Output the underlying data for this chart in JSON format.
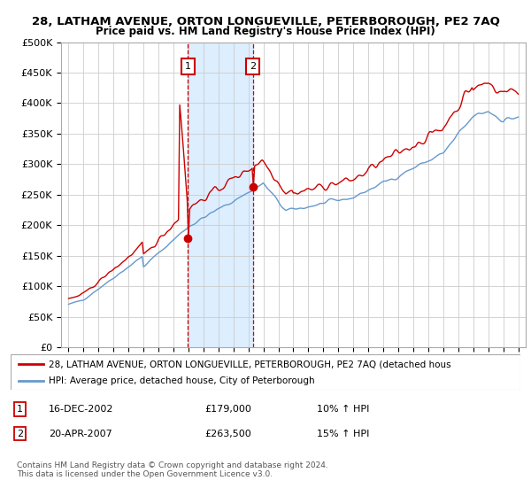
{
  "title": "28, LATHAM AVENUE, ORTON LONGUEVILLE, PETERBOROUGH, PE2 7AQ",
  "subtitle": "Price paid vs. HM Land Registry's House Price Index (HPI)",
  "legend_line1": "28, LATHAM AVENUE, ORTON LONGUEVILLE, PETERBOROUGH, PE2 7AQ (detached hous",
  "legend_line2": "HPI: Average price, detached house, City of Peterborough",
  "annotation1_label": "1",
  "annotation1_date": "16-DEC-2002",
  "annotation1_price": "£179,000",
  "annotation1_hpi": "10% ↑ HPI",
  "annotation2_label": "2",
  "annotation2_date": "20-APR-2007",
  "annotation2_price": "£263,500",
  "annotation2_hpi": "15% ↑ HPI",
  "footer": "Contains HM Land Registry data © Crown copyright and database right 2024.\nThis data is licensed under the Open Government Licence v3.0.",
  "ylim": [
    0,
    500000
  ],
  "yticks": [
    0,
    50000,
    100000,
    150000,
    200000,
    250000,
    300000,
    350000,
    400000,
    450000,
    500000
  ],
  "line_color_red": "#cc0000",
  "line_color_blue": "#6699cc",
  "shade_color": "#ddeeff",
  "annotation_box_color": "#cc0000",
  "background_color": "#ffffff",
  "grid_color": "#cccccc",
  "sale1_year": 2002.96,
  "sale1_value": 179000,
  "sale2_year": 2007.3,
  "sale2_value": 263500
}
